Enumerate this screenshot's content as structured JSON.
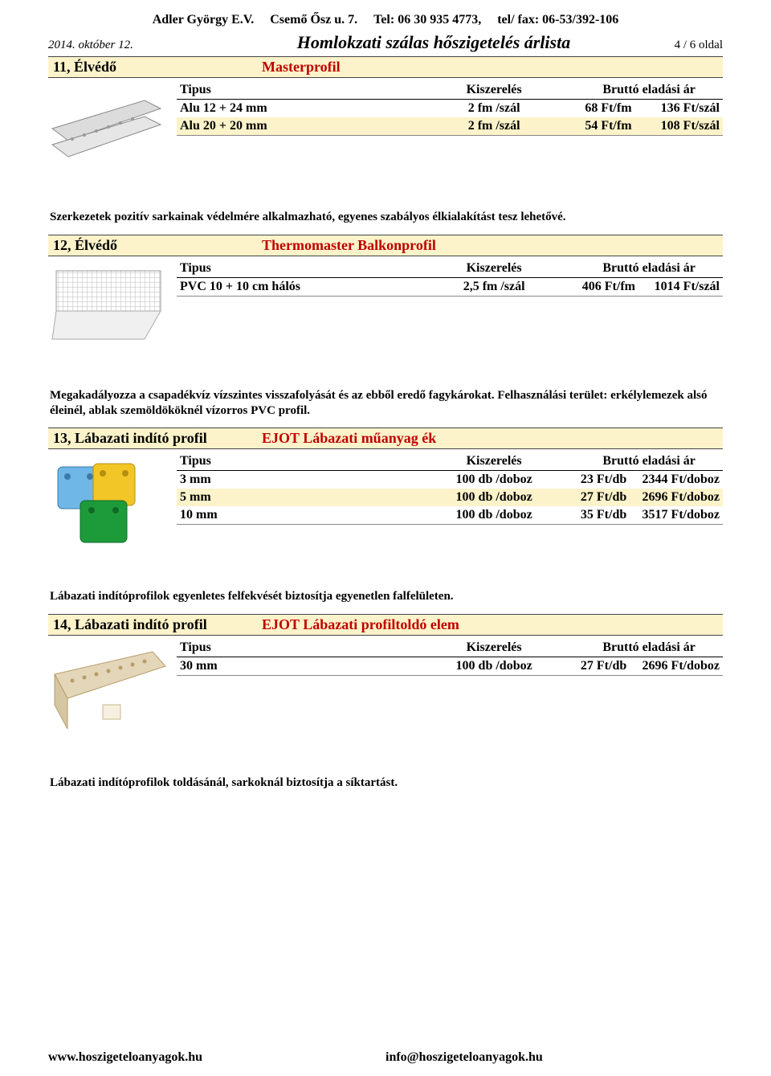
{
  "header": {
    "company": "Adler György  E.V.",
    "address": "Csemő Ősz u. 7.",
    "phone": "Tel: 06 30 935 4773,",
    "fax": "tel/ fax: 06-53/392-106"
  },
  "subhead": {
    "date": "2014. október 12.",
    "title": "Homlokzati szálas hőszigetelés árlista",
    "page": "4 / 6 oldal"
  },
  "sections": [
    {
      "num": "11, Élvédő",
      "title": "Masterprofil",
      "icon": "alu-profile",
      "columns": [
        "Tipus",
        "Kiszerelés",
        "Bruttó eladási ár"
      ],
      "rows": [
        {
          "cells": [
            "Alu 12 + 24 mm",
            "2 fm /szál",
            "68 Ft/fm",
            "136 Ft/szál"
          ],
          "hl": false
        },
        {
          "cells": [
            "Alu 20 + 20 mm",
            "2 fm /szál",
            "54 Ft/fm",
            "108 Ft/szál"
          ],
          "hl": true
        }
      ],
      "desc": "Szerkezetek pozitív sarkainak védelmére alkalmazható, egyenes szabályos élkialakítást tesz lehetővé."
    },
    {
      "num": "12, Élvédő",
      "title": "Thermomaster Balkonprofil",
      "icon": "pvc-mesh",
      "columns": [
        "Tipus",
        "Kiszerelés",
        "Bruttó eladási ár"
      ],
      "rows": [
        {
          "cells": [
            "PVC 10 + 10 cm hálós",
            "2,5 fm /szál",
            "406 Ft/fm",
            "1014 Ft/szál"
          ],
          "hl": false
        }
      ],
      "desc": "Megakadályozza a csapadékvíz vízszintes visszafolyását és az ebből eredő fagykárokat. Felhasználási terület: erkélylemezek alsó éleinél, ablak szemöldököknél vízorros PVC profil."
    },
    {
      "num": "13, Lábazati indító profil",
      "title": "EJOT Lábazati műanyag ék",
      "icon": "shims",
      "columns": [
        "Tipus",
        "Kiszerelés",
        "Bruttó eladási ár"
      ],
      "rows": [
        {
          "cells": [
            "3 mm",
            "100 db /doboz",
            "23 Ft/db",
            "2344 Ft/doboz"
          ],
          "hl": false
        },
        {
          "cells": [
            "5 mm",
            "100 db /doboz",
            "27 Ft/db",
            "2696 Ft/doboz"
          ],
          "hl": true
        },
        {
          "cells": [
            "10 mm",
            "100 db /doboz",
            "35 Ft/db",
            "3517 Ft/doboz"
          ],
          "hl": false
        }
      ],
      "desc": "Lábazati indítóprofilok egyenletes felfekvését biztosítja egyenetlen falfelületen."
    },
    {
      "num": "14, Lábazati indító profil",
      "title": "EJOT Lábazati profiltoldó elem",
      "icon": "connector",
      "columns": [
        "Tipus",
        "Kiszerelés",
        "Bruttó eladási ár"
      ],
      "rows": [
        {
          "cells": [
            "30 mm",
            "100 db /doboz",
            "27 Ft/db",
            "2696 Ft/doboz"
          ],
          "hl": false
        }
      ],
      "desc": "Lábazati indítóprofilok toldásánál, sarkoknál biztosítja a síktartást."
    }
  ],
  "footer": {
    "web": "www.hoszigeteloanyagok.hu",
    "email": "info@hoszigeteloanyagok.hu"
  },
  "colors": {
    "highlight": "#fcf3ca",
    "section_title": "#c00000"
  }
}
